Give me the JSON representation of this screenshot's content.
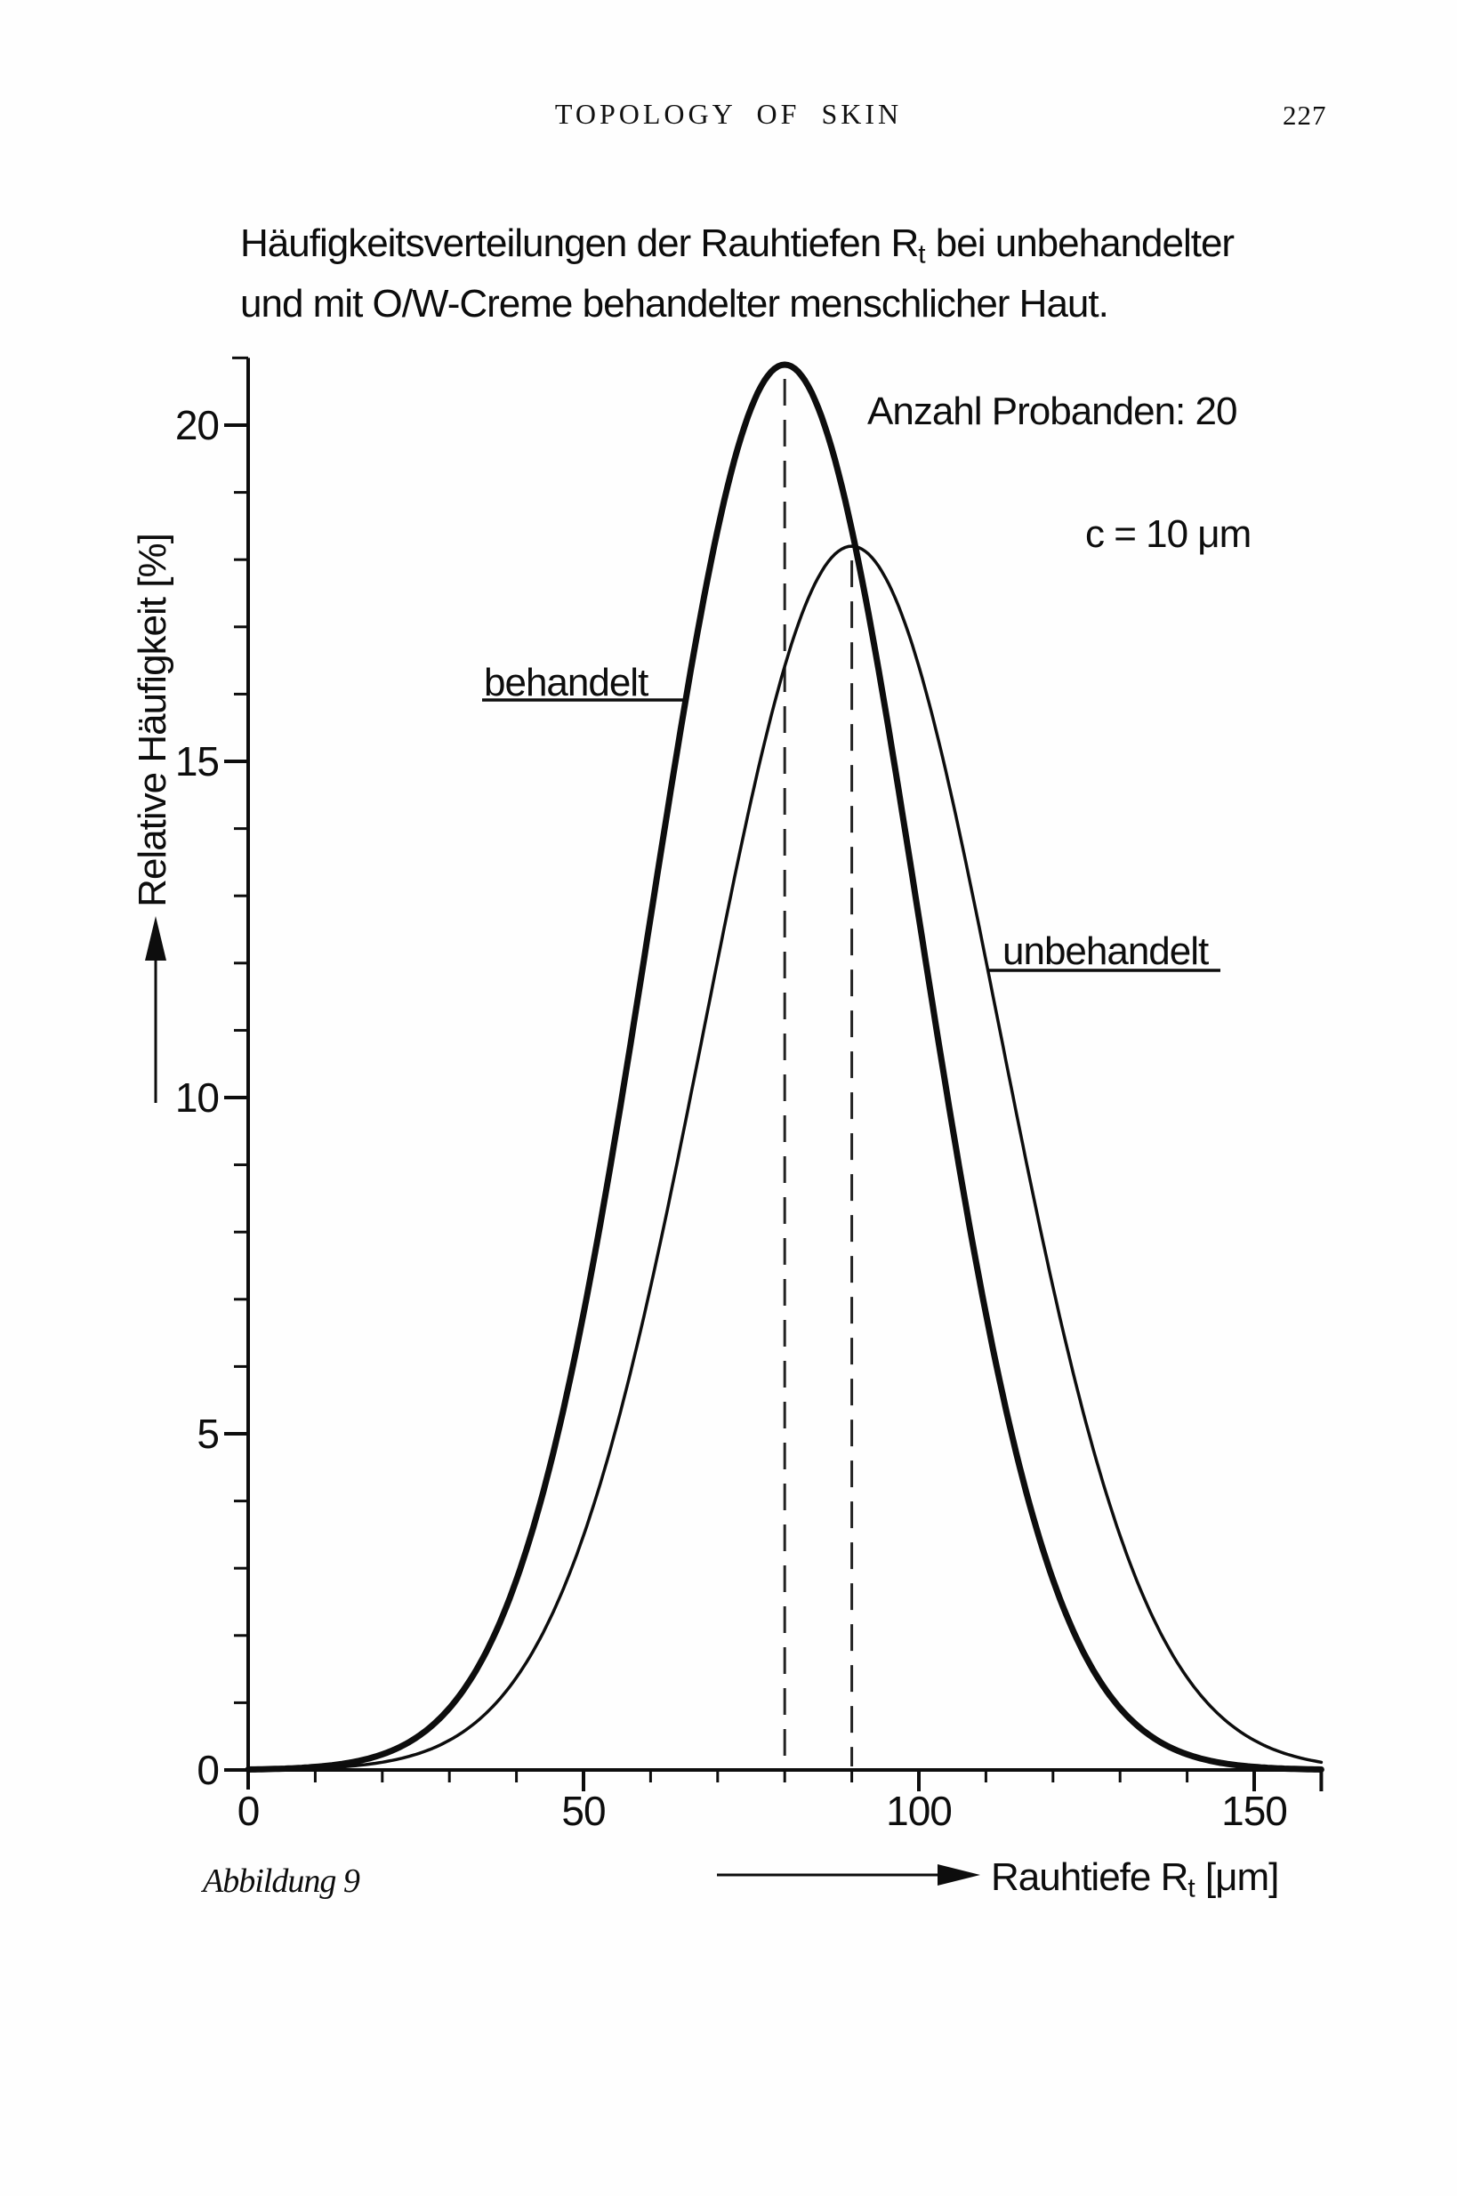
{
  "header": {
    "running_title": "TOPOLOGY OF SKIN",
    "page_number": "227"
  },
  "figure_title": {
    "line1_prefix": "Häufigkeitsverteilungen der Rauhtiefen R",
    "line1_sub": "t",
    "line1_suffix": " bei unbehandelter",
    "line2": "und mit O/W-Creme behandelter menschlicher Haut."
  },
  "annotations": {
    "subject_count": "Anzahl Probanden: 20",
    "class_width": "c = 10 μm"
  },
  "curve_labels": {
    "treated": "behandelt",
    "untreated": "unbehandelt"
  },
  "axis_labels": {
    "y": "Relative Häufigkeit [%]",
    "x_prefix": "Rauhtiefe R",
    "x_sub": "t",
    "x_suffix": " [μm]"
  },
  "caption": "Abbildung 9",
  "ink_color": "#0d0d0d",
  "chart_data": {
    "type": "line",
    "title": "Häufigkeitsverteilungen der Rauhtiefen Rt bei unbehandelter und mit O/W-Creme behandelter menschlicher Haut.",
    "xlabel": "Rauhtiefe Rt [μm]",
    "ylabel": "Relative Häufigkeit [%]",
    "xlim": [
      0,
      160
    ],
    "ylim": [
      0,
      21
    ],
    "x_major_ticks": [
      0,
      50,
      100,
      150
    ],
    "x_minor_tick_step": 10,
    "y_major_ticks": [
      0,
      5,
      10,
      15,
      20
    ],
    "y_minor_tick_step": 1,
    "grid": false,
    "legend_position": "inline-labels",
    "annotations": [
      "Anzahl Probanden: 20",
      "c = 10 μm"
    ],
    "series": [
      {
        "name": "behandelt",
        "style": "thick",
        "distribution": "gaussian",
        "mean": 80,
        "sigma": 20,
        "peak_percent": 20.9,
        "mean_marker": "dashed-vertical-line"
      },
      {
        "name": "unbehandelt",
        "style": "thin",
        "distribution": "gaussian",
        "mean": 90,
        "sigma": 22,
        "peak_percent": 18.2,
        "mean_marker": "dashed-vertical-line"
      }
    ],
    "sampled_points": {
      "x": [
        0,
        10,
        20,
        30,
        40,
        50,
        60,
        70,
        80,
        90,
        100,
        110,
        120,
        130,
        140,
        150,
        160
      ],
      "behandelt": [
        0.01,
        0.05,
        0.23,
        0.92,
        2.8,
        6.8,
        12.7,
        18.4,
        20.9,
        18.4,
        12.7,
        6.8,
        2.8,
        0.92,
        0.23,
        0.05,
        0.01
      ],
      "unbehandelt": [
        0.0,
        0.02,
        0.12,
        0.44,
        1.4,
        3.5,
        7.2,
        12.0,
        16.4,
        18.2,
        16.4,
        12.0,
        7.2,
        3.5,
        1.4,
        0.44,
        0.12
      ]
    }
  }
}
